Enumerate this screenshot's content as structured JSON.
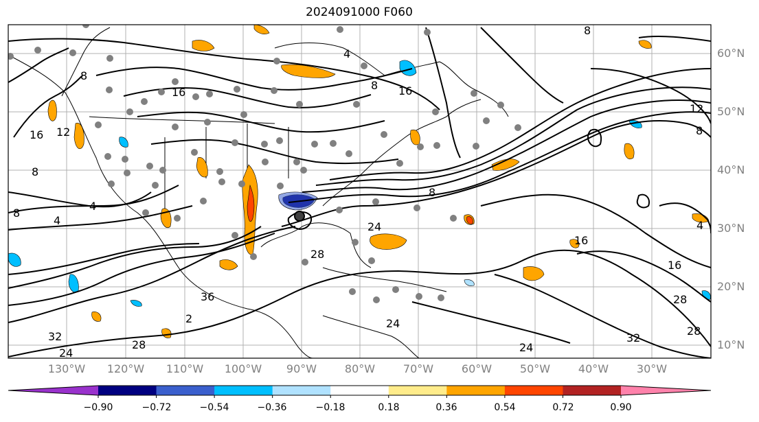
{
  "title": "2024091000 F060",
  "lat_labels": [
    "60°N",
    "50°N",
    "40°N",
    "30°N",
    "20°N",
    "10°N"
  ],
  "lon_labels": [
    "130°W",
    "120°W",
    "110°W",
    "100°W",
    "90°W",
    "80°W",
    "70°W",
    "60°W",
    "50°W",
    "40°W",
    "30°W"
  ],
  "contour_labels": [
    "4",
    "4",
    "4",
    "4",
    "8",
    "8",
    "8",
    "8",
    "8",
    "8",
    "8",
    "12",
    "12",
    "16",
    "16",
    "16",
    "16",
    "16",
    "24",
    "24",
    "24",
    "24",
    "28",
    "28",
    "28",
    "28",
    "32",
    "32",
    "36",
    "2"
  ],
  "colorbar": {
    "ticks": [
      "−0.90",
      "−0.72",
      "−0.54",
      "−0.36",
      "−0.18",
      "0.18",
      "0.36",
      "0.54",
      "0.72",
      "0.90"
    ],
    "colors": [
      "#9932cc",
      "#000080",
      "#3a5fcd",
      "#00bfff",
      "#b0e2ff",
      "#ffffff",
      "#ffec8b",
      "#ffa500",
      "#ff4500",
      "#b22222",
      "#ff82ab"
    ]
  }
}
